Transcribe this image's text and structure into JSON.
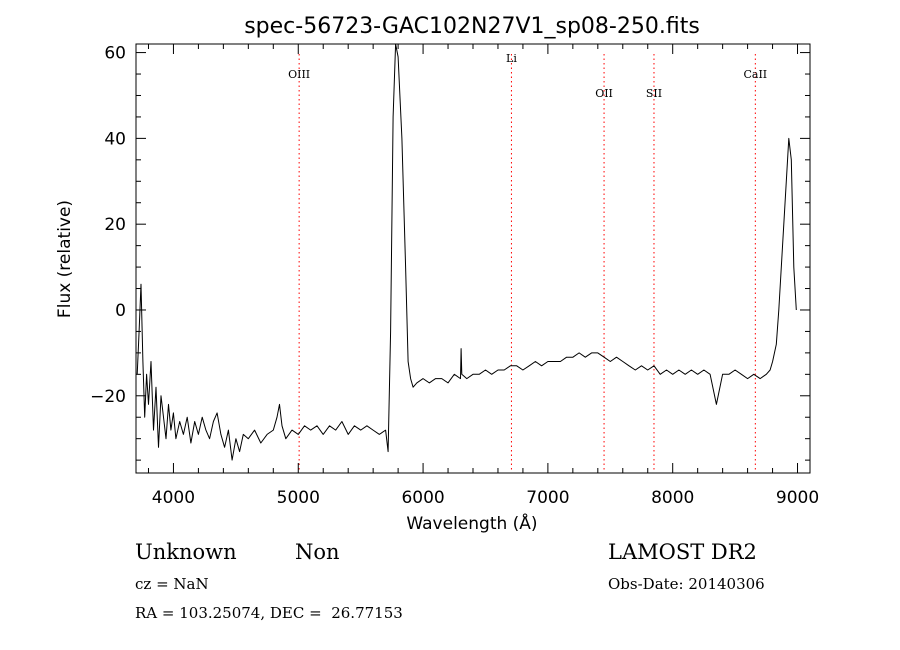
{
  "chart_data": {
    "type": "line",
    "title": "spec-56723-GAC102N27V1_sp08-250.fits",
    "xlabel": "Wavelength (Å)",
    "ylabel": "Flux (relative)",
    "xlim": [
      3700,
      9100
    ],
    "ylim": [
      -38,
      62
    ],
    "xticks": [
      4000,
      5000,
      6000,
      7000,
      8000,
      9000
    ],
    "yticks": [
      -20,
      0,
      20,
      40,
      60
    ],
    "ytick_labels": [
      "−20",
      "0",
      "20",
      "40",
      "60"
    ],
    "grid": false,
    "series": [
      {
        "color": "#000000",
        "points": [
          [
            3710,
            -15
          ],
          [
            3725,
            -5
          ],
          [
            3740,
            6
          ],
          [
            3755,
            -12
          ],
          [
            3770,
            -25
          ],
          [
            3785,
            -15
          ],
          [
            3800,
            -22
          ],
          [
            3820,
            -12
          ],
          [
            3840,
            -28
          ],
          [
            3860,
            -18
          ],
          [
            3880,
            -32
          ],
          [
            3900,
            -20
          ],
          [
            3920,
            -25
          ],
          [
            3940,
            -30
          ],
          [
            3960,
            -22
          ],
          [
            3980,
            -28
          ],
          [
            4000,
            -24
          ],
          [
            4020,
            -30
          ],
          [
            4050,
            -26
          ],
          [
            4080,
            -29
          ],
          [
            4110,
            -25
          ],
          [
            4140,
            -31
          ],
          [
            4170,
            -26
          ],
          [
            4200,
            -29
          ],
          [
            4230,
            -25
          ],
          [
            4260,
            -28
          ],
          [
            4290,
            -30
          ],
          [
            4320,
            -26
          ],
          [
            4350,
            -24
          ],
          [
            4380,
            -29
          ],
          [
            4410,
            -32
          ],
          [
            4440,
            -28
          ],
          [
            4470,
            -35
          ],
          [
            4500,
            -30
          ],
          [
            4530,
            -33
          ],
          [
            4560,
            -29
          ],
          [
            4600,
            -30
          ],
          [
            4650,
            -28
          ],
          [
            4700,
            -31
          ],
          [
            4750,
            -29
          ],
          [
            4800,
            -28
          ],
          [
            4830,
            -25
          ],
          [
            4850,
            -22
          ],
          [
            4870,
            -27
          ],
          [
            4900,
            -30
          ],
          [
            4950,
            -28
          ],
          [
            5000,
            -29
          ],
          [
            5050,
            -27
          ],
          [
            5100,
            -28
          ],
          [
            5150,
            -27
          ],
          [
            5200,
            -29
          ],
          [
            5250,
            -27
          ],
          [
            5300,
            -28
          ],
          [
            5350,
            -26
          ],
          [
            5400,
            -29
          ],
          [
            5450,
            -27
          ],
          [
            5500,
            -28
          ],
          [
            5550,
            -27
          ],
          [
            5600,
            -28
          ],
          [
            5650,
            -29
          ],
          [
            5700,
            -28
          ],
          [
            5720,
            -33
          ],
          [
            5740,
            -5
          ],
          [
            5760,
            45
          ],
          [
            5780,
            62
          ],
          [
            5800,
            59
          ],
          [
            5830,
            40
          ],
          [
            5860,
            10
          ],
          [
            5880,
            -12
          ],
          [
            5900,
            -16
          ],
          [
            5920,
            -18
          ],
          [
            5950,
            -17
          ],
          [
            6000,
            -16
          ],
          [
            6050,
            -17
          ],
          [
            6100,
            -16
          ],
          [
            6150,
            -16
          ],
          [
            6200,
            -17
          ],
          [
            6250,
            -15
          ],
          [
            6300,
            -16
          ],
          [
            6305,
            -9
          ],
          [
            6310,
            -15
          ],
          [
            6350,
            -16
          ],
          [
            6400,
            -15
          ],
          [
            6450,
            -15
          ],
          [
            6500,
            -14
          ],
          [
            6550,
            -15
          ],
          [
            6600,
            -14
          ],
          [
            6650,
            -14
          ],
          [
            6700,
            -13
          ],
          [
            6750,
            -13
          ],
          [
            6800,
            -14
          ],
          [
            6850,
            -13
          ],
          [
            6900,
            -12
          ],
          [
            6950,
            -13
          ],
          [
            7000,
            -12
          ],
          [
            7050,
            -12
          ],
          [
            7100,
            -12
          ],
          [
            7150,
            -11
          ],
          [
            7200,
            -11
          ],
          [
            7250,
            -10
          ],
          [
            7300,
            -11
          ],
          [
            7350,
            -10
          ],
          [
            7400,
            -10
          ],
          [
            7450,
            -11
          ],
          [
            7500,
            -12
          ],
          [
            7550,
            -11
          ],
          [
            7600,
            -12
          ],
          [
            7650,
            -13
          ],
          [
            7700,
            -14
          ],
          [
            7750,
            -13
          ],
          [
            7800,
            -14
          ],
          [
            7850,
            -13
          ],
          [
            7900,
            -15
          ],
          [
            7950,
            -14
          ],
          [
            8000,
            -15
          ],
          [
            8050,
            -14
          ],
          [
            8100,
            -15
          ],
          [
            8150,
            -14
          ],
          [
            8200,
            -15
          ],
          [
            8250,
            -14
          ],
          [
            8300,
            -15
          ],
          [
            8350,
            -22
          ],
          [
            8400,
            -15
          ],
          [
            8450,
            -15
          ],
          [
            8500,
            -14
          ],
          [
            8550,
            -15
          ],
          [
            8600,
            -16
          ],
          [
            8650,
            -15
          ],
          [
            8700,
            -16
          ],
          [
            8750,
            -15
          ],
          [
            8780,
            -14
          ],
          [
            8800,
            -12
          ],
          [
            8830,
            -8
          ],
          [
            8850,
            0
          ],
          [
            8870,
            10
          ],
          [
            8890,
            20
          ],
          [
            8910,
            30
          ],
          [
            8930,
            40
          ],
          [
            8950,
            35
          ],
          [
            8970,
            10
          ],
          [
            8990,
            0
          ]
        ]
      }
    ],
    "reference_lines": [
      {
        "name": "OIII",
        "x": 5007,
        "color": "#ff0000"
      },
      {
        "name": "Li",
        "x": 6708,
        "color": "#ff0000"
      },
      {
        "name": "OII",
        "x": 7450,
        "color": "#ff0000"
      },
      {
        "name": "SII",
        "x": 7850,
        "color": "#ff0000"
      },
      {
        "name": "CaII",
        "x": 8662,
        "color": "#ff0000"
      }
    ]
  },
  "footer": {
    "class_label": "Unknown",
    "subclass_label": "Non",
    "cz_text": "cz = NaN",
    "coords_text": "RA = 103.25074, DEC =  26.77153",
    "survey_text": "LAMOST DR2",
    "obs_date_text": "Obs-Date: 20140306"
  }
}
